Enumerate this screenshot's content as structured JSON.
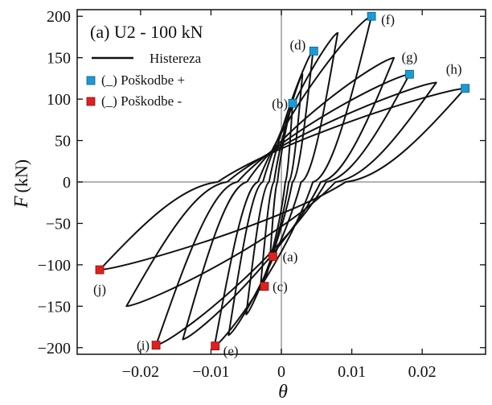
{
  "chart_data": {
    "type": "line",
    "title": "(a) U2 - 100 kN",
    "xlabel": "θ",
    "ylabel": "F",
    "ylabel_unit": "(kN)",
    "xlim": [
      -0.029,
      0.029
    ],
    "ylim": [
      -208,
      208
    ],
    "x_ticks": [
      -0.02,
      -0.01,
      0,
      0.01,
      0.02
    ],
    "x_tick_labels": [
      "−0.02",
      "−0.01",
      "0",
      "0.01",
      "0.02"
    ],
    "y_ticks": [
      -200,
      -150,
      -100,
      -50,
      0,
      50,
      100,
      150,
      200
    ],
    "y_tick_labels": [
      "−200",
      "−150",
      "−100",
      "−50",
      "0",
      "50",
      "100",
      "150",
      "200"
    ],
    "legend": {
      "placement": "top-left",
      "entries": [
        {
          "label": "Histereza",
          "kind": "line",
          "color": "#111111"
        },
        {
          "label": "(_) Poškodbe +",
          "kind": "marker",
          "color": "#1b9ad6"
        },
        {
          "label": "(_) Poškodbe -",
          "kind": "marker",
          "color": "#e02020"
        }
      ]
    },
    "hysteresis_cycles": [
      {
        "x_pos": 0.0016,
        "f_pos": 95,
        "x_neg": -0.0016,
        "f_neg": -90
      },
      {
        "x_pos": 0.003,
        "f_pos": 130,
        "x_neg": -0.003,
        "f_neg": -130
      },
      {
        "x_pos": 0.0045,
        "f_pos": 158,
        "x_neg": -0.005,
        "f_neg": -160
      },
      {
        "x_pos": 0.008,
        "f_pos": 180,
        "x_neg": -0.0075,
        "f_neg": -185
      },
      {
        "x_pos": 0.0128,
        "f_pos": 200,
        "x_neg": -0.0095,
        "f_neg": -198
      },
      {
        "x_pos": 0.016,
        "f_pos": 150,
        "x_neg": -0.014,
        "f_neg": -190
      },
      {
        "x_pos": 0.0182,
        "f_pos": 130,
        "x_neg": -0.0178,
        "f_neg": -197
      },
      {
        "x_pos": 0.022,
        "f_pos": 120,
        "x_neg": -0.022,
        "f_neg": -150
      },
      {
        "x_pos": 0.0261,
        "f_pos": 113,
        "x_neg": -0.0258,
        "f_neg": -106
      }
    ],
    "damage_points_positive": [
      {
        "label": "(b)",
        "x": 0.0016,
        "y": 95
      },
      {
        "label": "(d)",
        "x": 0.0046,
        "y": 158
      },
      {
        "label": "(f)",
        "x": 0.0128,
        "y": 200
      },
      {
        "label": "(g)",
        "x": 0.0182,
        "y": 130
      },
      {
        "label": "(h)",
        "x": 0.0261,
        "y": 113
      }
    ],
    "damage_points_negative": [
      {
        "label": "(a)",
        "x": -0.0012,
        "y": -90
      },
      {
        "label": "(c)",
        "x": -0.0024,
        "y": -126
      },
      {
        "label": "(e)",
        "x": -0.0094,
        "y": -198
      },
      {
        "label": "(i)",
        "x": -0.0178,
        "y": -197
      },
      {
        "label": "(j)",
        "x": -0.0258,
        "y": -106
      }
    ]
  }
}
